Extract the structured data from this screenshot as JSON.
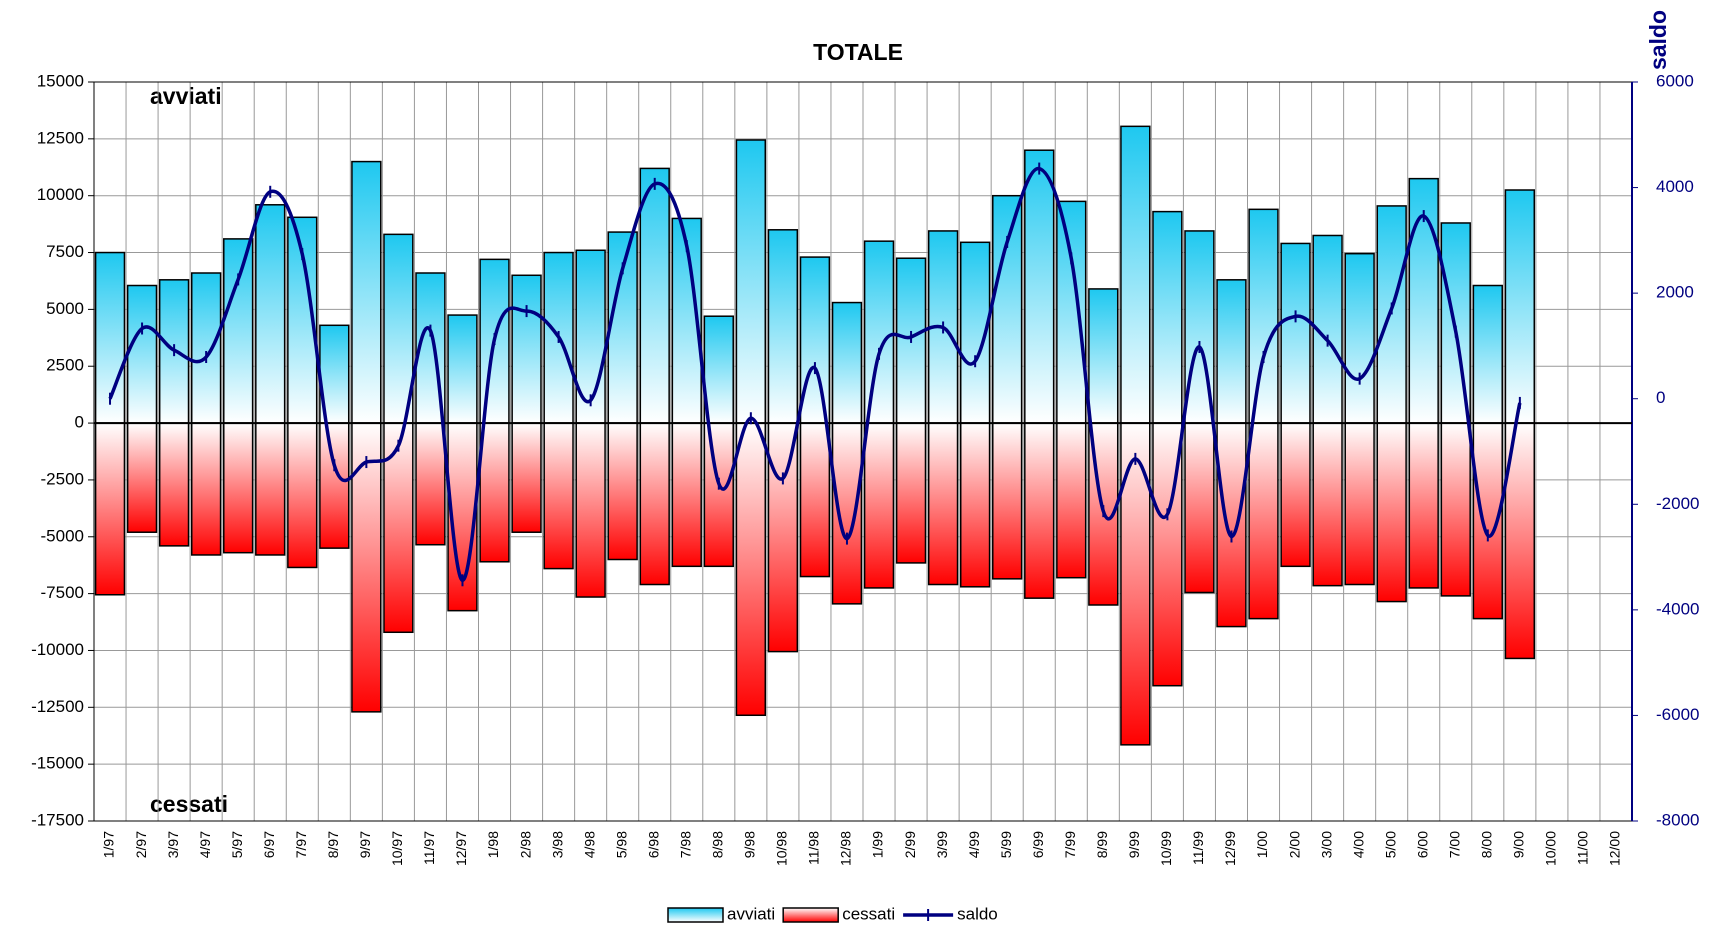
{
  "chart_data": {
    "type": "bar",
    "title": "TOTALE",
    "y2_label": "saldo",
    "annotations": [
      "avviati",
      "cessati"
    ],
    "categories": [
      "1/97",
      "2/97",
      "3/97",
      "4/97",
      "5/97",
      "6/97",
      "7/97",
      "8/97",
      "9/97",
      "10/97",
      "11/97",
      "12/97",
      "1/98",
      "2/98",
      "3/98",
      "4/98",
      "5/98",
      "6/98",
      "7/98",
      "8/98",
      "9/98",
      "10/98",
      "11/98",
      "12/98",
      "1/99",
      "2/99",
      "3/99",
      "4/99",
      "5/99",
      "6/99",
      "7/99",
      "8/99",
      "9/99",
      "10/99",
      "11/99",
      "12/99",
      "1/00",
      "2/00",
      "3/00",
      "4/00",
      "5/00",
      "6/00",
      "7/00",
      "8/00",
      "9/00",
      "10/00",
      "11/00",
      "12/00"
    ],
    "series": [
      {
        "name": "avviati",
        "color": "#1ec8f0",
        "values": [
          7500,
          6050,
          6300,
          6600,
          8100,
          9600,
          9050,
          4300,
          11500,
          8300,
          6600,
          4750,
          7200,
          6500,
          7500,
          7600,
          8400,
          11200,
          9000,
          4700,
          12450,
          8500,
          7300,
          5300,
          8000,
          7250,
          8450,
          7950,
          10000,
          12000,
          9750,
          5900,
          13050,
          9300,
          8450,
          6300,
          9400,
          7900,
          8250,
          7450,
          9550,
          10750,
          8800,
          6050,
          10250,
          null,
          null,
          null
        ]
      },
      {
        "name": "cessati",
        "color": "#ff0000",
        "values": [
          -7550,
          -4800,
          -5400,
          -5800,
          -5700,
          -5800,
          -6350,
          -5500,
          -12700,
          -9200,
          -5350,
          -8250,
          -6100,
          -4800,
          -6400,
          -7650,
          -6000,
          -7100,
          -6300,
          -6300,
          -12850,
          -10050,
          -6750,
          -7950,
          -7250,
          -6150,
          -7100,
          -7200,
          -6850,
          -7700,
          -6800,
          -8000,
          -14150,
          -11550,
          -7450,
          -8950,
          -8600,
          -6300,
          -7150,
          -7100,
          -7850,
          -7250,
          -7600,
          -8600,
          -10350,
          null,
          null,
          null
        ]
      },
      {
        "name": "saldo",
        "color": "#000080",
        "axis": "y2",
        "values": [
          0,
          1330,
          920,
          790,
          2260,
          3920,
          2740,
          -1260,
          -1200,
          -890,
          1290,
          -3440,
          1130,
          1660,
          1170,
          -30,
          2470,
          4070,
          2890,
          -1610,
          -370,
          -1510,
          580,
          -2650,
          850,
          1170,
          1350,
          710,
          2970,
          4360,
          2660,
          -2130,
          -1140,
          -2190,
          980,
          -2610,
          790,
          1560,
          1100,
          380,
          1710,
          3460,
          1270,
          -2590,
          -80,
          null,
          null,
          null
        ]
      }
    ],
    "ylim": [
      -17500,
      15000
    ],
    "yticks": [
      -17500,
      -15000,
      -12500,
      -10000,
      -7500,
      -5000,
      -2500,
      0,
      2500,
      5000,
      7500,
      10000,
      12500,
      15000
    ],
    "y2lim": [
      -8000,
      6000
    ],
    "y2ticks": [
      -8000,
      -6000,
      -4000,
      -2000,
      0,
      2000,
      4000,
      6000
    ],
    "grid": true
  }
}
